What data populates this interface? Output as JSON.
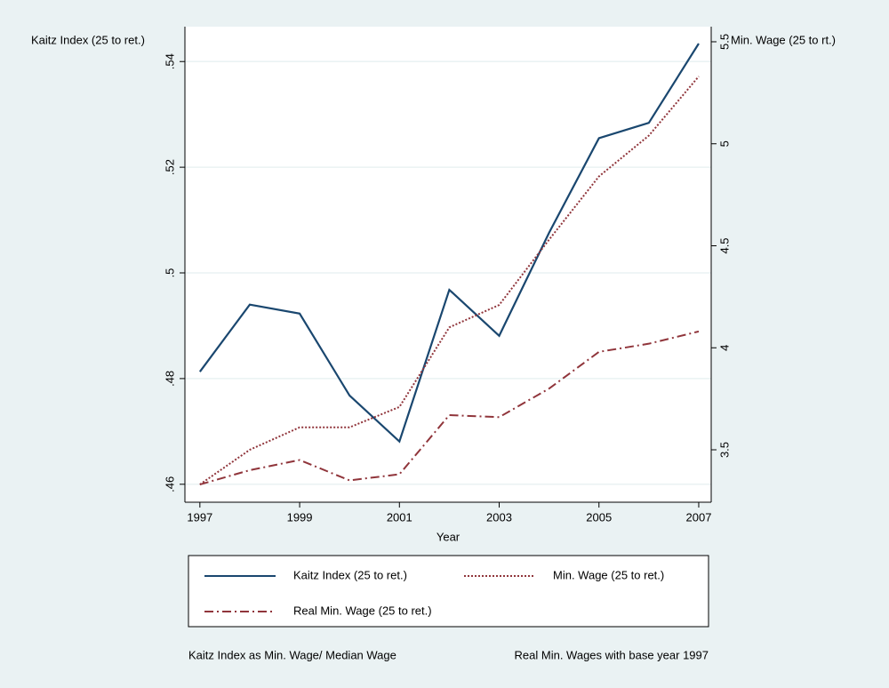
{
  "chart_data": {
    "type": "line",
    "y_label": "Kaitz Index (25 to ret.)",
    "y2_label": "Min. Wage (25 to rt.)",
    "x_label": "Year",
    "x": [
      1997,
      1998,
      1999,
      2000,
      2001,
      2002,
      2003,
      2004,
      2005,
      2006,
      2007
    ],
    "series": [
      {
        "name": "Kaitz Index (25 to ret.)",
        "color": "#1a476f",
        "dash": "solid",
        "axis": "y",
        "values": [
          0.4813,
          0.494,
          0.4923,
          0.4768,
          0.4681,
          0.4968,
          0.4881,
          0.5076,
          0.5255,
          0.5284,
          0.5434
        ]
      },
      {
        "name": "Min. Wage (25 to ret.)",
        "color": "#90353b",
        "dash": "dot",
        "axis": "y2",
        "values": [
          3.33,
          3.5,
          3.61,
          3.61,
          3.71,
          4.1,
          4.21,
          4.53,
          4.84,
          5.04,
          5.33
        ]
      },
      {
        "name": "Real Min. Wage  (25 to ret.)",
        "color": "#90353b",
        "dash": "dashdot",
        "axis": "y2",
        "values": [
          3.33,
          3.4,
          3.45,
          3.35,
          3.38,
          3.67,
          3.66,
          3.8,
          3.98,
          4.02,
          4.08
        ]
      }
    ],
    "xlim": [
      1996.7,
      2007.25
    ],
    "xticks": [
      1997,
      1999,
      2001,
      2003,
      2005,
      2007
    ],
    "ylim": [
      0.4566,
      0.5466
    ],
    "yticks": [
      {
        "value": 0.46,
        "label": ".46"
      },
      {
        "value": 0.48,
        "label": ".48"
      },
      {
        "value": 0.5,
        "label": ".5"
      },
      {
        "value": 0.52,
        "label": ".52"
      },
      {
        "value": 0.54,
        "label": ".54"
      }
    ],
    "y2lim": [
      3.243,
      5.574
    ],
    "y2ticks": [
      3.5,
      4,
      4.5,
      5,
      5.5
    ],
    "grid": true,
    "notes": [
      "Kaitz Index as Min. Wage/ Median Wage",
      "Real Min. Wages with base year 1997"
    ]
  }
}
